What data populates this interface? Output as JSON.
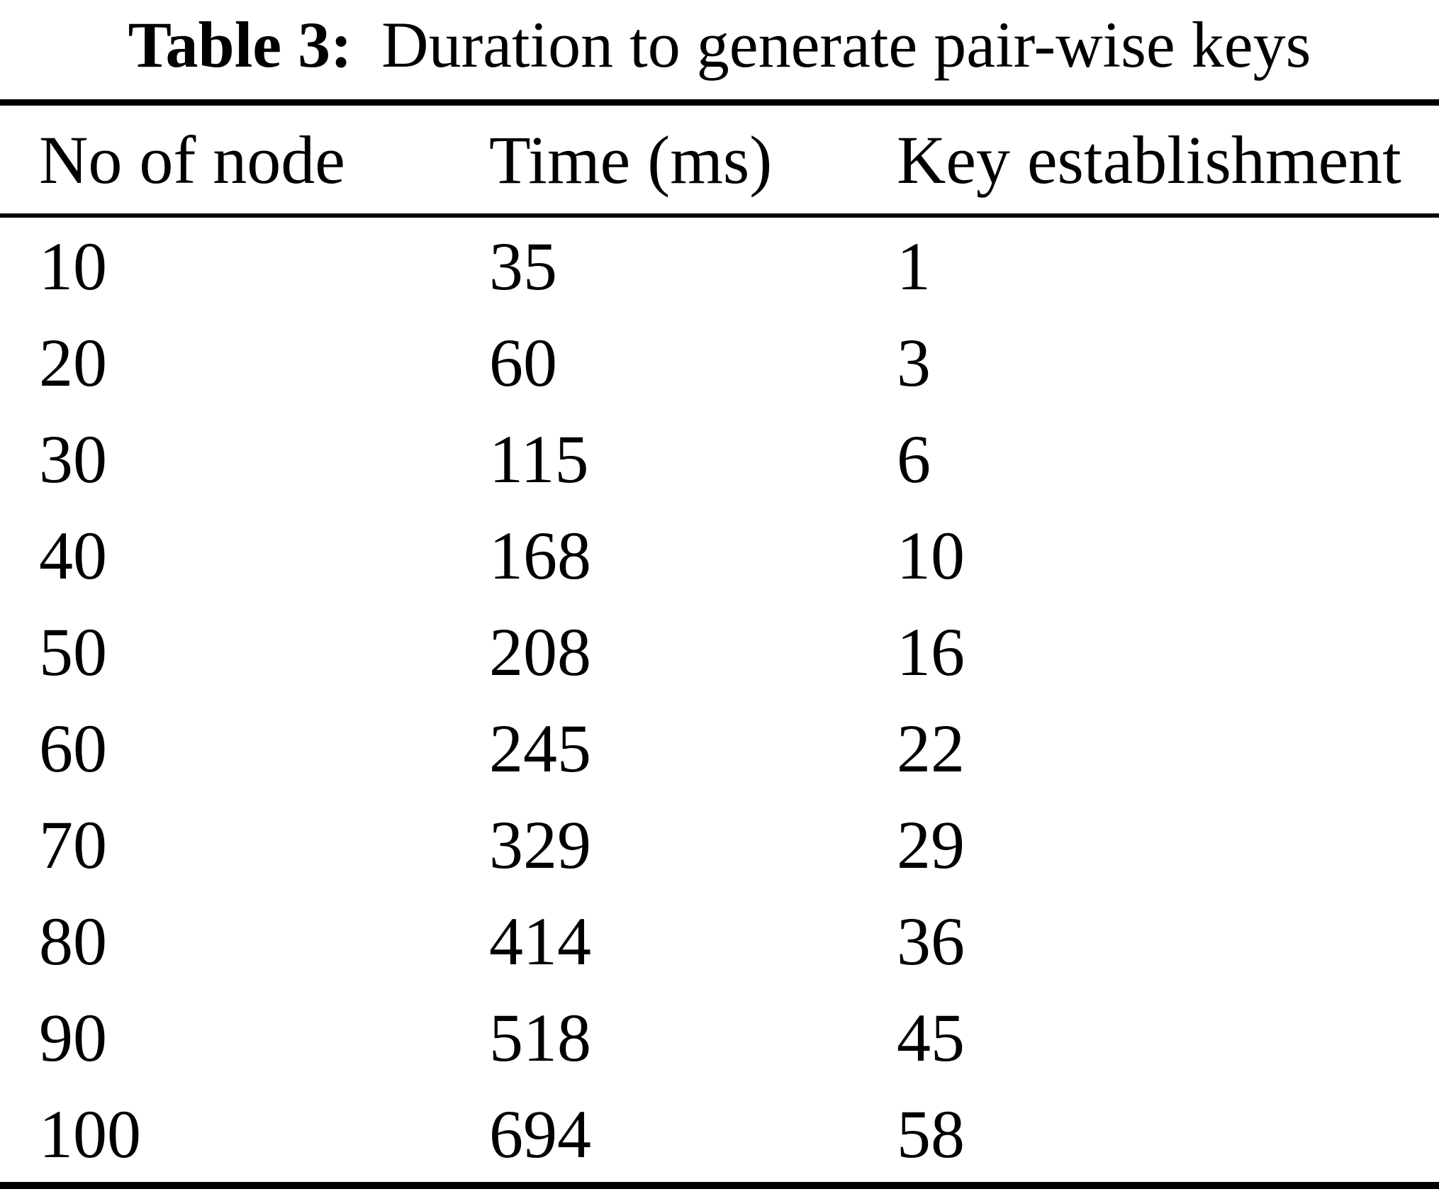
{
  "title": {
    "label": "Table 3:",
    "text": "Duration to generate pair-wise keys"
  },
  "table": {
    "headers": [
      "No of node",
      "Time (ms)",
      "Key establishment"
    ],
    "rows": [
      [
        "10",
        "35",
        "1"
      ],
      [
        "20",
        "60",
        "3"
      ],
      [
        "30",
        "115",
        "6"
      ],
      [
        "40",
        "168",
        "10"
      ],
      [
        "50",
        "208",
        "16"
      ],
      [
        "60",
        "245",
        "22"
      ],
      [
        "70",
        "329",
        "29"
      ],
      [
        "80",
        "414",
        "36"
      ],
      [
        "90",
        "518",
        "45"
      ],
      [
        "100",
        "694",
        "58"
      ]
    ]
  },
  "colors": {
    "background": "#ffffff",
    "text": "#000000",
    "rule": "#000000"
  },
  "chart_data": {
    "type": "table",
    "title": "Table 3: Duration to generate pair-wise keys",
    "columns": [
      "No of node",
      "Time (ms)",
      "Key establishment"
    ],
    "rows": [
      [
        10,
        35,
        1
      ],
      [
        20,
        60,
        3
      ],
      [
        30,
        115,
        6
      ],
      [
        40,
        168,
        10
      ],
      [
        50,
        208,
        16
      ],
      [
        60,
        245,
        22
      ],
      [
        70,
        329,
        29
      ],
      [
        80,
        414,
        36
      ],
      [
        90,
        518,
        45
      ],
      [
        100,
        694,
        58
      ]
    ]
  }
}
